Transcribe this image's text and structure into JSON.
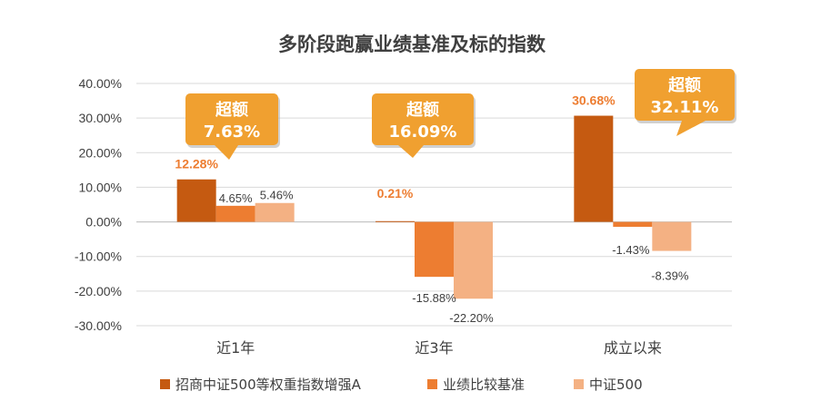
{
  "chart_data": {
    "type": "bar",
    "title": "多阶段跑赢业绩基准及标的指数",
    "categories": [
      "近1年",
      "近3年",
      "成立以来"
    ],
    "ylim": [
      -30,
      40
    ],
    "yticks": [
      40,
      30,
      20,
      10,
      0,
      -10,
      -20,
      -30
    ],
    "ytick_labels": [
      "40.00%",
      "30.00%",
      "20.00%",
      "10.00%",
      "0.00%",
      "-10.00%",
      "-20.00%",
      "-30.00%"
    ],
    "grid": true,
    "legend_position": "bottom",
    "series": [
      {
        "name": "招商中证500等权重指数增强A",
        "color": "#C55A11",
        "values": [
          12.28,
          0.21,
          30.68
        ],
        "labels": [
          "12.28%",
          "0.21%",
          "30.68%"
        ]
      },
      {
        "name": "业绩比较基准",
        "color": "#ED7D31",
        "values": [
          4.65,
          -15.88,
          -1.43
        ],
        "labels": [
          "4.65%",
          "-15.88%",
          "-1.43%"
        ]
      },
      {
        "name": "中证500",
        "color": "#F4B183",
        "values": [
          5.46,
          -22.2,
          -8.39
        ],
        "labels": [
          "5.46%",
          "-22.20%",
          "-8.39%"
        ]
      }
    ],
    "callouts": [
      {
        "line1": "超额",
        "line2": "7.63%"
      },
      {
        "line1": "超额",
        "line2": "16.09%"
      },
      {
        "line1": "超额",
        "line2": "32.11%"
      }
    ],
    "colors": {
      "callout_fill": "#F0A030",
      "highlight_label": "#ED7D31",
      "grid": "#D9D9D9",
      "axis_text": "#404040"
    }
  }
}
